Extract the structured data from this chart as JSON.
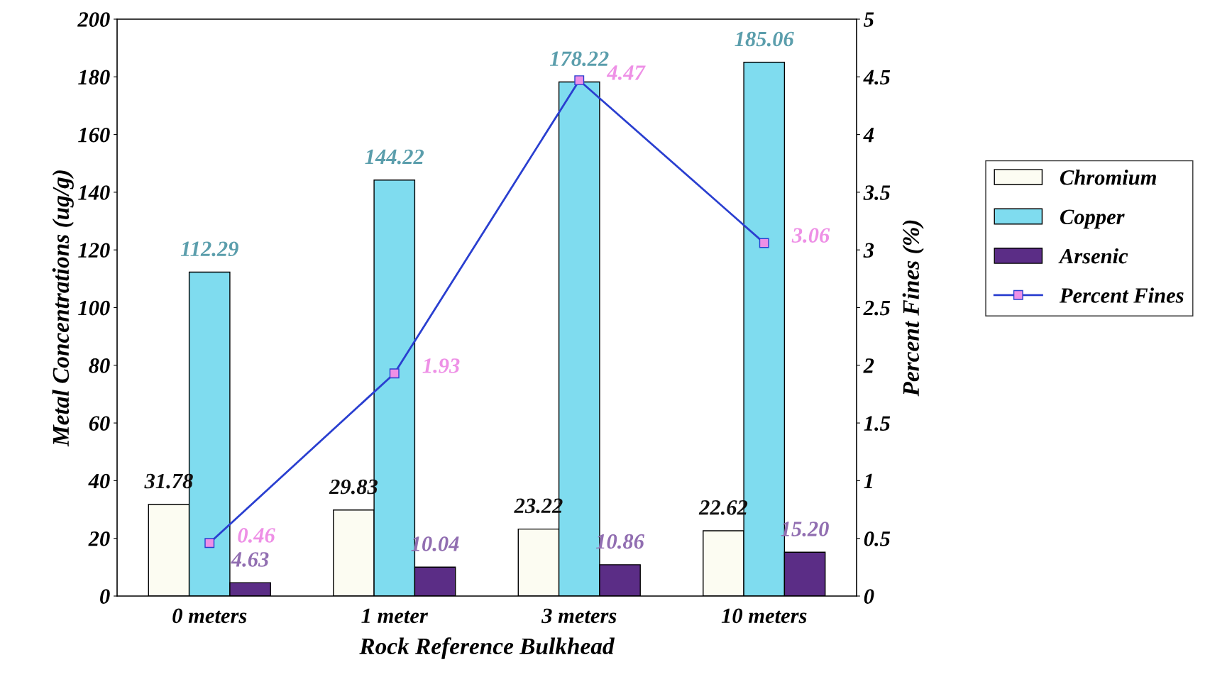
{
  "chart_data": {
    "type": "bar",
    "xlabel": "Rock Reference Bulkhead",
    "ylabel": "Metal Concentrations (ug/g)",
    "y2label": "Percent Fines (%)",
    "categories": [
      "0 meters",
      "1 meter",
      "3 meters",
      "10 meters"
    ],
    "series": [
      {
        "name": "Chromium",
        "color": "#fcfcf2",
        "values": [
          31.78,
          29.83,
          23.22,
          22.62
        ],
        "value_labels": [
          "31.78",
          "29.83",
          "23.22",
          "22.62"
        ]
      },
      {
        "name": "Copper",
        "color": "#7fdcef",
        "values": [
          112.29,
          144.22,
          178.22,
          185.06
        ],
        "value_labels": [
          "112.29",
          "144.22",
          "178.22",
          "185.06"
        ]
      },
      {
        "name": "Arsenic",
        "color": "#5b2d86",
        "values": [
          4.63,
          10.04,
          10.86,
          15.2
        ],
        "value_labels": [
          "4.63",
          "10.04",
          "10.86",
          "15.20"
        ]
      },
      {
        "name": "Percent Fines",
        "type": "line",
        "axis": "y2",
        "color": "#2a3fd0",
        "marker": "square",
        "values": [
          0.46,
          1.93,
          4.47,
          3.06
        ],
        "value_labels": [
          "0.46",
          "1.93",
          "4.47",
          "3.06"
        ]
      }
    ],
    "ylim": [
      0,
      200
    ],
    "yticks": [
      0,
      20,
      40,
      60,
      80,
      100,
      120,
      140,
      160,
      180,
      200
    ],
    "y2lim": [
      0,
      5
    ],
    "y2ticks": [
      0,
      0.5,
      1,
      1.5,
      2,
      2.5,
      3,
      3.5,
      4,
      4.5,
      5
    ],
    "grid": false,
    "legend": "right"
  }
}
